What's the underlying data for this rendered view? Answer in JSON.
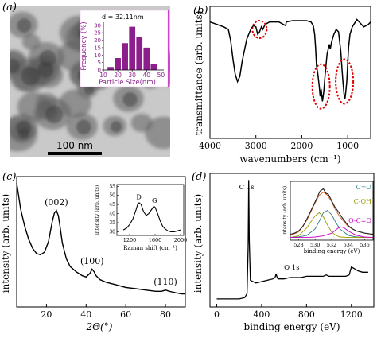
{
  "panel_labels": {
    "a": "(a)",
    "b": "(b)",
    "c": "(c)",
    "d": "(d)"
  },
  "panel_a": {
    "scale_bar": "100 nm",
    "inset_annotation": "d = 32.11nm",
    "colors": {
      "bars": "#8c1f8c",
      "frame": "#cc44cc"
    }
  },
  "chart_data": [
    {
      "panel": "a-inset",
      "type": "bar",
      "xlabel": "Particle Size(nm)",
      "ylabel": "Frequency (%)",
      "x": [
        15,
        20,
        25,
        30,
        35,
        40,
        45
      ],
      "values": [
        2,
        8,
        18,
        29,
        22,
        15,
        4
      ],
      "xticks": [
        10,
        20,
        30,
        40,
        50
      ],
      "yticks": [
        0,
        5,
        10,
        15,
        20,
        25,
        30
      ],
      "xlim": [
        10,
        52
      ],
      "ylim": [
        0,
        32
      ]
    },
    {
      "panel": "b",
      "type": "line",
      "xlabel": "wavenumbers (cm⁻¹)",
      "ylabel": "transmittance (arb. units)",
      "xticks": [
        4000,
        3000,
        2000,
        1000
      ],
      "xlim": [
        4000,
        500
      ],
      "ylim": [
        0,
        1
      ],
      "x": [
        4000,
        3850,
        3700,
        3600,
        3550,
        3500,
        3450,
        3400,
        3350,
        3300,
        3200,
        3100,
        3050,
        3000,
        2960,
        2920,
        2880,
        2850,
        2800,
        2700,
        2500,
        2350,
        2340,
        2200,
        2000,
        1900,
        1800,
        1750,
        1720,
        1700,
        1680,
        1650,
        1620,
        1600,
        1580,
        1550,
        1520,
        1500,
        1480,
        1450,
        1400,
        1380,
        1350,
        1300,
        1250,
        1200,
        1150,
        1120,
        1100,
        1080,
        1060,
        1040,
        1020,
        1000,
        980,
        950,
        900,
        850,
        800,
        750,
        700,
        650,
        600,
        550,
        500
      ],
      "values": [
        0.9,
        0.88,
        0.86,
        0.84,
        0.75,
        0.6,
        0.48,
        0.42,
        0.46,
        0.58,
        0.76,
        0.85,
        0.87,
        0.86,
        0.8,
        0.82,
        0.86,
        0.84,
        0.88,
        0.9,
        0.9,
        0.87,
        0.9,
        0.91,
        0.91,
        0.91,
        0.9,
        0.87,
        0.8,
        0.7,
        0.55,
        0.48,
        0.38,
        0.3,
        0.36,
        0.26,
        0.34,
        0.44,
        0.52,
        0.64,
        0.72,
        0.68,
        0.74,
        0.8,
        0.84,
        0.82,
        0.66,
        0.5,
        0.4,
        0.32,
        0.28,
        0.34,
        0.42,
        0.56,
        0.7,
        0.8,
        0.86,
        0.89,
        0.92,
        0.9,
        0.88,
        0.86,
        0.87,
        0.88,
        0.9
      ],
      "highlight_circles": [
        {
          "x": 2920,
          "y": 0.84
        },
        {
          "x": 1580,
          "y": 0.38
        },
        {
          "x": 1070,
          "y": 0.42
        }
      ],
      "highlight_color": "#e00000"
    },
    {
      "panel": "c",
      "type": "line",
      "xlabel": "2Θ(°)",
      "ylabel": "intensity (arb. units)",
      "xticks": [
        20,
        40,
        60,
        80
      ],
      "xlim": [
        5,
        90
      ],
      "ylim": [
        0,
        1
      ],
      "x": [
        5,
        7,
        9,
        11,
        13,
        15,
        17,
        19,
        21,
        22,
        23,
        24,
        25,
        26,
        27,
        28,
        30,
        32,
        35,
        38,
        40,
        42,
        43,
        44,
        45,
        47,
        50,
        55,
        60,
        65,
        70,
        75,
        78,
        80,
        82,
        85,
        88,
        90
      ],
      "values": [
        0.95,
        0.75,
        0.62,
        0.52,
        0.45,
        0.41,
        0.4,
        0.42,
        0.5,
        0.58,
        0.66,
        0.72,
        0.74,
        0.7,
        0.6,
        0.49,
        0.37,
        0.31,
        0.27,
        0.24,
        0.23,
        0.26,
        0.29,
        0.27,
        0.24,
        0.21,
        0.19,
        0.17,
        0.15,
        0.14,
        0.13,
        0.12,
        0.12,
        0.13,
        0.12,
        0.11,
        0.1,
        0.1
      ],
      "peak_labels": [
        {
          "text": "(002)",
          "x": 25,
          "y": 0.78
        },
        {
          "text": "(100)",
          "x": 43,
          "y": 0.33
        },
        {
          "text": "(110)",
          "x": 80,
          "y": 0.17
        }
      ]
    },
    {
      "panel": "c-inset",
      "type": "line",
      "xlabel": "Raman shift (cm⁻¹)",
      "ylabel": "intensity (arb. units)",
      "xticks": [
        1200,
        1600,
        2000
      ],
      "yticks": [
        30,
        35,
        40,
        45,
        50,
        55
      ],
      "xlim": [
        1000,
        2050
      ],
      "ylim": [
        28,
        56
      ],
      "x": [
        1100,
        1150,
        1200,
        1250,
        1300,
        1330,
        1350,
        1380,
        1420,
        1460,
        1500,
        1540,
        1580,
        1600,
        1640,
        1680,
        1720,
        1760,
        1800,
        1850,
        1900,
        1950,
        2000
      ],
      "values": [
        31,
        32,
        34,
        37,
        42,
        45.5,
        46,
        45,
        41,
        39,
        40,
        42,
        44,
        43.5,
        40,
        36,
        33,
        31.5,
        30.5,
        30,
        30,
        30.5,
        31
      ],
      "peak_labels": [
        {
          "text": "D",
          "x": 1345,
          "y": 48
        },
        {
          "text": "G",
          "x": 1590,
          "y": 46
        }
      ]
    },
    {
      "panel": "d",
      "type": "line",
      "xlabel": "binding energy (eV)",
      "ylabel": "intensity (arb. units)",
      "xticks": [
        0,
        400,
        800,
        1200
      ],
      "xlim": [
        -60,
        1400
      ],
      "ylim": [
        0,
        1
      ],
      "x": [
        0,
        50,
        100,
        150,
        200,
        250,
        270,
        280,
        285,
        290,
        300,
        350,
        400,
        450,
        500,
        520,
        530,
        535,
        545,
        560,
        600,
        650,
        700,
        750,
        800,
        850,
        900,
        950,
        975,
        1000,
        1050,
        1100,
        1150,
        1180,
        1200,
        1220,
        1240,
        1260,
        1300,
        1350
      ],
      "values": [
        0.06,
        0.06,
        0.06,
        0.06,
        0.06,
        0.07,
        0.1,
        0.45,
        0.95,
        0.5,
        0.2,
        0.18,
        0.19,
        0.2,
        0.21,
        0.22,
        0.25,
        0.23,
        0.21,
        0.21,
        0.21,
        0.22,
        0.22,
        0.22,
        0.23,
        0.23,
        0.23,
        0.23,
        0.24,
        0.23,
        0.23,
        0.23,
        0.23,
        0.24,
        0.3,
        0.29,
        0.28,
        0.27,
        0.26,
        0.26
      ],
      "peak_labels": [
        {
          "text": "C 1s",
          "x": 200,
          "y": 0.88
        },
        {
          "text": "O 1s",
          "x": 600,
          "y": 0.28
        }
      ]
    },
    {
      "panel": "d-inset",
      "type": "line",
      "xlabel": "binding energy (eV)",
      "ylabel": "intensity (arb. units)",
      "xticks": [
        528,
        530,
        532,
        534,
        536
      ],
      "xlim": [
        527,
        537
      ],
      "ylim": [
        0,
        1
      ],
      "series": [
        {
          "name": "C=O",
          "color": "#2e7d8a",
          "x": [
            527,
            528,
            529,
            530,
            530.5,
            531,
            531.5,
            532,
            532.5,
            533,
            534,
            535,
            536,
            537
          ],
          "values": [
            0.02,
            0.03,
            0.06,
            0.18,
            0.32,
            0.48,
            0.52,
            0.44,
            0.3,
            0.18,
            0.06,
            0.03,
            0.02,
            0.02
          ]
        },
        {
          "name": "C-OH",
          "color": "#9a9a00",
          "x": [
            527,
            528,
            529,
            530,
            530.5,
            531,
            531.5,
            532,
            532.5,
            533,
            534,
            535,
            536,
            537
          ],
          "values": [
            0.02,
            0.05,
            0.2,
            0.42,
            0.48,
            0.4,
            0.25,
            0.12,
            0.06,
            0.03,
            0.02,
            0.02,
            0.02,
            0.02
          ]
        },
        {
          "name": "O-C=O",
          "color": "#cc00cc",
          "x": [
            527,
            529,
            530,
            531,
            532,
            532.5,
            533,
            533.5,
            534,
            535,
            536,
            537
          ],
          "values": [
            0.02,
            0.02,
            0.03,
            0.05,
            0.1,
            0.16,
            0.22,
            0.2,
            0.14,
            0.06,
            0.03,
            0.02
          ]
        },
        {
          "color": "#e06020",
          "x": [
            527,
            528,
            529,
            530,
            530.5,
            531,
            531.5,
            532,
            532.5,
            533,
            534,
            535,
            536,
            537
          ],
          "values": [
            0.06,
            0.12,
            0.34,
            0.66,
            0.8,
            0.86,
            0.8,
            0.68,
            0.52,
            0.4,
            0.22,
            0.14,
            0.1,
            0.08
          ]
        },
        {
          "color": "#222222",
          "x": [
            527,
            527.5,
            528,
            528.5,
            529,
            529.5,
            530,
            530.3,
            530.6,
            531,
            531.3,
            531.6,
            532,
            532.4,
            532.8,
            533.2,
            533.6,
            534,
            534.5,
            535,
            535.5,
            536,
            536.5,
            537
          ],
          "values": [
            0.08,
            0.1,
            0.14,
            0.22,
            0.36,
            0.52,
            0.68,
            0.78,
            0.88,
            0.92,
            0.84,
            0.82,
            0.7,
            0.58,
            0.5,
            0.4,
            0.32,
            0.24,
            0.18,
            0.14,
            0.12,
            0.1,
            0.09,
            0.08
          ]
        }
      ]
    }
  ]
}
